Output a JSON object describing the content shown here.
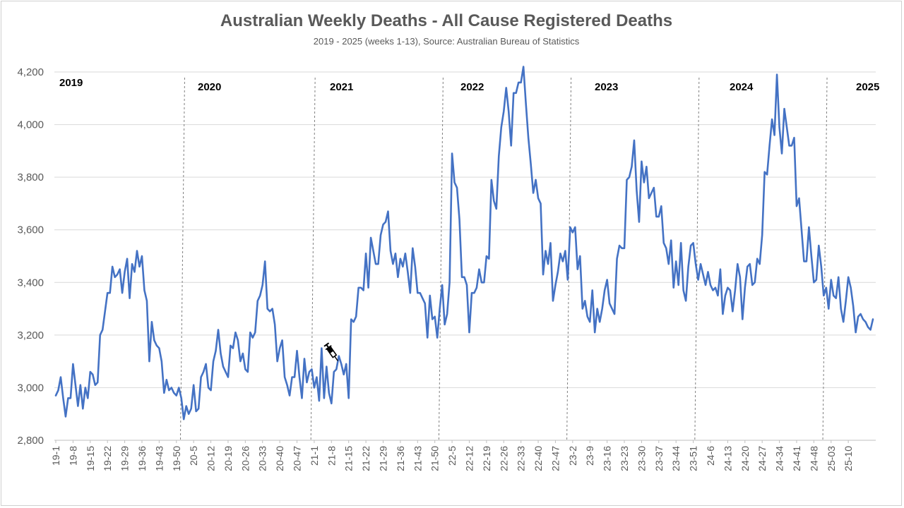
{
  "chart_data": {
    "type": "line",
    "title": "Australian Weekly Deaths - All Cause Registered Deaths",
    "subtitle": "2019 - 2025 (weeks 1-13), Source: Australian Bureau of Statistics",
    "xlabel": "",
    "ylabel": "",
    "ylim": [
      2800,
      4200
    ],
    "yticks": [
      2800,
      3000,
      3200,
      3400,
      3600,
      3800,
      4000,
      4200
    ],
    "ytick_labels": [
      "2,800",
      "3,000",
      "3,200",
      "3,400",
      "3,600",
      "3,800",
      "4,000",
      "4,200"
    ],
    "grid": "horizontal",
    "legend": "none",
    "xtick_labels": [
      "19-1",
      "19-8",
      "19-15",
      "19-22",
      "19-29",
      "19-36",
      "19-43",
      "19-50",
      "20-5",
      "20-12",
      "20-19",
      "20-26",
      "20-33",
      "20-40",
      "20-47",
      "21-1",
      "21-8",
      "21-15",
      "21-22",
      "21-29",
      "21-36",
      "21-43",
      "21-50",
      "22-5",
      "22-12",
      "22-19",
      "22-26",
      "22-33",
      "22-40",
      "22-47",
      "23-2",
      "23-9",
      "23-16",
      "23-23",
      "23-30",
      "23-37",
      "23-44",
      "23-51",
      "24-6",
      "24-13",
      "24-20",
      "24-27",
      "24-34",
      "24-41",
      "24-48",
      "25-03",
      "25-10"
    ],
    "year_boundaries": [
      "2019",
      "2020",
      "2021",
      "2022",
      "2023",
      "2024",
      "2025"
    ],
    "year_boundary_weeks": [
      52,
      105,
      157,
      209,
      261,
      313
    ],
    "vaccine_marker_week": 112,
    "series": [
      {
        "color": "#4472c4",
        "values": [
          2970,
          2990,
          3040,
          2960,
          2890,
          2960,
          2960,
          3090,
          3010,
          2930,
          3010,
          2920,
          3000,
          2960,
          3060,
          3050,
          3010,
          3020,
          3200,
          3220,
          3290,
          3360,
          3360,
          3460,
          3420,
          3430,
          3450,
          3360,
          3440,
          3490,
          3340,
          3470,
          3440,
          3520,
          3460,
          3500,
          3370,
          3330,
          3100,
          3250,
          3180,
          3160,
          3150,
          3100,
          2980,
          3030,
          2990,
          3000,
          2980,
          2970,
          3000,
          2960,
          2880,
          2930,
          2900,
          2920,
          3010,
          2910,
          2920,
          3040,
          3060,
          3090,
          3000,
          2990,
          3100,
          3140,
          3220,
          3130,
          3080,
          3060,
          3040,
          3160,
          3150,
          3210,
          3180,
          3100,
          3130,
          3070,
          3060,
          3210,
          3190,
          3210,
          3330,
          3350,
          3390,
          3480,
          3300,
          3290,
          3300,
          3240,
          3100,
          3150,
          3180,
          3040,
          3010,
          2970,
          3040,
          3040,
          3140,
          3040,
          2960,
          3110,
          3020,
          3060,
          3070,
          3000,
          3040,
          2950,
          3150,
          2960,
          3080,
          2980,
          2940,
          3060,
          3070,
          3120,
          3090,
          3050,
          3090,
          2960,
          3260,
          3250,
          3270,
          3380,
          3380,
          3370,
          3510,
          3380,
          3570,
          3520,
          3470,
          3470,
          3580,
          3620,
          3630,
          3670,
          3520,
          3470,
          3510,
          3420,
          3490,
          3460,
          3510,
          3440,
          3360,
          3530,
          3460,
          3360,
          3360,
          3340,
          3320,
          3190,
          3350,
          3260,
          3270,
          3190,
          3300,
          3390,
          3240,
          3280,
          3400,
          3890,
          3780,
          3760,
          3640,
          3420,
          3420,
          3390,
          3210,
          3360,
          3360,
          3380,
          3450,
          3400,
          3400,
          3500,
          3490,
          3790,
          3710,
          3680,
          3880,
          3990,
          4050,
          4140,
          4050,
          3920,
          4120,
          4120,
          4160,
          4160,
          4220,
          4080,
          3950,
          3850,
          3740,
          3790,
          3720,
          3700,
          3430,
          3520,
          3470,
          3550,
          3330,
          3390,
          3440,
          3510,
          3480,
          3520,
          3410,
          3610,
          3590,
          3610,
          3450,
          3500,
          3300,
          3330,
          3270,
          3250,
          3370,
          3210,
          3300,
          3250,
          3300,
          3370,
          3410,
          3320,
          3300,
          3280,
          3490,
          3540,
          3530,
          3530,
          3790,
          3800,
          3840,
          3940,
          3750,
          3630,
          3860,
          3780,
          3840,
          3720,
          3740,
          3760,
          3650,
          3650,
          3690,
          3550,
          3530,
          3470,
          3560,
          3380,
          3480,
          3390,
          3550,
          3370,
          3330,
          3460,
          3540,
          3550,
          3470,
          3410,
          3470,
          3430,
          3390,
          3440,
          3390,
          3370,
          3380,
          3350,
          3450,
          3280,
          3350,
          3380,
          3370,
          3290,
          3370,
          3470,
          3420,
          3260,
          3380,
          3460,
          3470,
          3390,
          3400,
          3490,
          3470,
          3580,
          3820,
          3810,
          3920,
          4020,
          3960,
          4190,
          3990,
          3890,
          4060,
          3990,
          3920,
          3920,
          3950,
          3690,
          3720,
          3600,
          3480,
          3480,
          3610,
          3500,
          3400,
          3410,
          3540,
          3460,
          3350,
          3380,
          3300,
          3410,
          3350,
          3340,
          3420,
          3300,
          3250,
          3330,
          3420,
          3380,
          3310,
          3210,
          3270,
          3280,
          3260,
          3250,
          3230,
          3220,
          3260
        ]
      }
    ]
  }
}
